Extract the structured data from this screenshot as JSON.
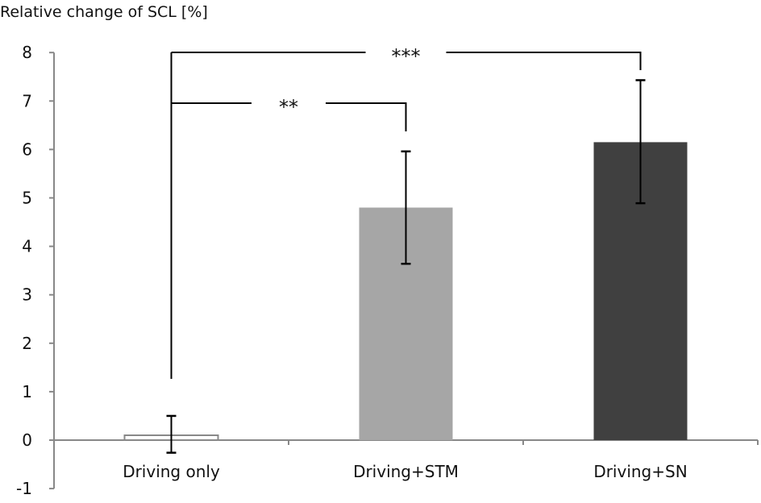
{
  "chart_data": {
    "type": "bar",
    "title": "",
    "ylabel": "Relative change of SCL [%]",
    "xlabel": "",
    "ylim": [
      -1,
      8
    ],
    "yticks": [
      -1,
      0,
      1,
      2,
      3,
      4,
      5,
      6,
      7,
      8
    ],
    "grid": false,
    "categories": [
      "Driving only",
      "Driving+STM",
      "Driving+SN"
    ],
    "values": [
      0.1,
      4.8,
      6.15
    ],
    "error_low": [
      -0.26,
      3.64,
      4.89
    ],
    "error_high": [
      0.5,
      5.96,
      7.43
    ],
    "colors": [
      "#ffffff",
      "#a6a6a6",
      "#404040"
    ],
    "significance": [
      {
        "from": "Driving only",
        "to": "Driving+STM",
        "label": "**"
      },
      {
        "from": "Driving only",
        "to": "Driving+SN",
        "label": "***"
      }
    ]
  }
}
